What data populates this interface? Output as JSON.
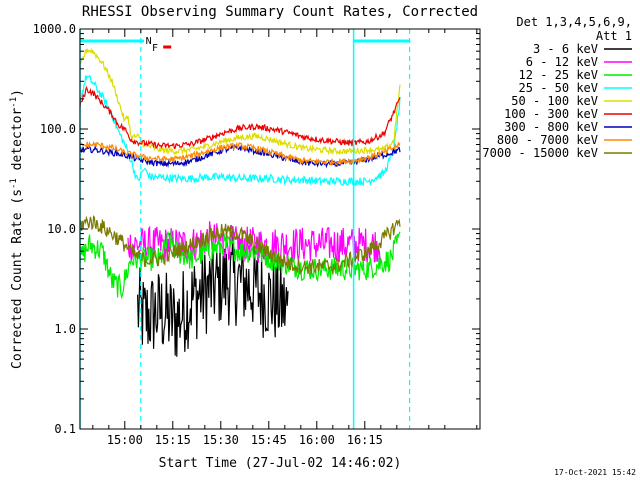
{
  "chart_data": {
    "type": "line",
    "title": "RHESSI Observing Summary Count Rates, Corrected",
    "xlabel": "Start Time (27-Jul-02 14:46:02)",
    "ylabel_main": "Corrected Count Rate (s",
    "ylabel_sup1": "-1",
    "ylabel_mid": " detector",
    "ylabel_sup2": "-1",
    "ylabel_end": ")",
    "yscale": "log",
    "ylim": [
      0.1,
      1000
    ],
    "xlim_minutes": [
      0,
      125
    ],
    "x_ticks": [
      {
        "m": 14,
        "label": "15:00"
      },
      {
        "m": 29,
        "label": "15:15"
      },
      {
        "m": 44,
        "label": "15:30"
      },
      {
        "m": 59,
        "label": "15:45"
      },
      {
        "m": 74,
        "label": "16:00"
      },
      {
        "m": 89,
        "label": "16:15"
      }
    ],
    "y_ticks": [
      {
        "v": 1000,
        "label": "1000.0"
      },
      {
        "v": 100,
        "label": "100.0"
      },
      {
        "v": 10,
        "label": "10.0"
      },
      {
        "v": 1,
        "label": "1.0"
      },
      {
        "v": 0.1,
        "label": "0.1"
      }
    ],
    "legend_header_1": "Det 1,3,4,5,6,9,",
    "legend_header_2": "Att 1",
    "footer_date": "17-Oct-2021 15:42",
    "flags": {
      "N": "N",
      "F": "F"
    },
    "series": [
      {
        "name": "3 - 6 keV",
        "color": "#000000",
        "points": [
          [
            18,
            1.6
          ],
          [
            20,
            1.3
          ],
          [
            25,
            1.5
          ],
          [
            30,
            1.2
          ],
          [
            35,
            2.0
          ],
          [
            40,
            2.5
          ],
          [
            45,
            3.0
          ],
          [
            50,
            3.0
          ],
          [
            55,
            2.5
          ],
          [
            60,
            2.0
          ],
          [
            65,
            1.6
          ]
        ]
      },
      {
        "name": "6 - 12 keV",
        "color": "#ff00ff",
        "points": [
          [
            15,
            7
          ],
          [
            20,
            7
          ],
          [
            27,
            7
          ],
          [
            30,
            7
          ],
          [
            35,
            7
          ],
          [
            40,
            8
          ],
          [
            45,
            7.5
          ],
          [
            50,
            7
          ],
          [
            55,
            7
          ],
          [
            60,
            7
          ],
          [
            70,
            7
          ],
          [
            80,
            7
          ],
          [
            94,
            7
          ]
        ]
      },
      {
        "name": "12 - 25 keV",
        "color": "#00ee00",
        "points": [
          [
            0,
            5
          ],
          [
            3,
            7
          ],
          [
            7,
            6
          ],
          [
            10,
            3
          ],
          [
            13,
            2.5
          ],
          [
            16,
            5
          ],
          [
            20,
            5
          ],
          [
            25,
            5
          ],
          [
            28,
            8
          ],
          [
            30,
            6
          ],
          [
            35,
            5
          ],
          [
            40,
            6
          ],
          [
            45,
            7
          ],
          [
            50,
            6
          ],
          [
            55,
            6
          ],
          [
            60,
            5
          ],
          [
            70,
            4
          ],
          [
            80,
            4
          ],
          [
            90,
            4
          ],
          [
            97,
            5
          ],
          [
            100,
            8
          ]
        ]
      },
      {
        "name": "25 - 50 keV",
        "color": "#00ffff",
        "points": [
          [
            0,
            190
          ],
          [
            2,
            340
          ],
          [
            4,
            290
          ],
          [
            7,
            210
          ],
          [
            10,
            140
          ],
          [
            12,
            95
          ],
          [
            14,
            70
          ],
          [
            16,
            48
          ],
          [
            18,
            30
          ],
          [
            20,
            40
          ],
          [
            22,
            33
          ],
          [
            25,
            33
          ],
          [
            30,
            32
          ],
          [
            35,
            32
          ],
          [
            40,
            33
          ],
          [
            45,
            33
          ],
          [
            50,
            32
          ],
          [
            55,
            32
          ],
          [
            60,
            32
          ],
          [
            65,
            31
          ],
          [
            70,
            31
          ],
          [
            75,
            30
          ],
          [
            80,
            30
          ],
          [
            85,
            30
          ],
          [
            90,
            30
          ],
          [
            95,
            36
          ],
          [
            98,
            60
          ],
          [
            100,
            190
          ]
        ]
      },
      {
        "name": "50 - 100 keV",
        "color": "#dddd00",
        "points": [
          [
            0,
            420
          ],
          [
            2,
            620
          ],
          [
            4,
            600
          ],
          [
            7,
            460
          ],
          [
            10,
            300
          ],
          [
            12,
            190
          ],
          [
            14,
            120
          ],
          [
            15,
            135
          ],
          [
            16,
            82
          ],
          [
            18,
            85
          ],
          [
            20,
            70
          ],
          [
            25,
            62
          ],
          [
            30,
            60
          ],
          [
            35,
            62
          ],
          [
            40,
            68
          ],
          [
            45,
            76
          ],
          [
            50,
            82
          ],
          [
            55,
            85
          ],
          [
            60,
            78
          ],
          [
            65,
            70
          ],
          [
            70,
            64
          ],
          [
            75,
            62
          ],
          [
            80,
            60
          ],
          [
            85,
            60
          ],
          [
            90,
            62
          ],
          [
            95,
            62
          ],
          [
            98,
            75
          ],
          [
            100,
            270
          ]
        ]
      },
      {
        "name": "100 - 300 keV",
        "color": "#ee0000",
        "points": [
          [
            0,
            170
          ],
          [
            2,
            250
          ],
          [
            4,
            230
          ],
          [
            7,
            180
          ],
          [
            10,
            140
          ],
          [
            12,
            110
          ],
          [
            14,
            100
          ],
          [
            16,
            78
          ],
          [
            18,
            74
          ],
          [
            20,
            72
          ],
          [
            25,
            68
          ],
          [
            30,
            68
          ],
          [
            35,
            71
          ],
          [
            40,
            80
          ],
          [
            45,
            92
          ],
          [
            50,
            102
          ],
          [
            55,
            106
          ],
          [
            60,
            100
          ],
          [
            65,
            92
          ],
          [
            70,
            83
          ],
          [
            75,
            78
          ],
          [
            80,
            75
          ],
          [
            85,
            72
          ],
          [
            90,
            75
          ],
          [
            95,
            90
          ],
          [
            100,
            200
          ]
        ]
      },
      {
        "name": "300 - 800 keV",
        "color": "#0000bb",
        "points": [
          [
            0,
            62
          ],
          [
            5,
            62
          ],
          [
            10,
            58
          ],
          [
            14,
            55
          ],
          [
            17,
            51
          ],
          [
            20,
            48
          ],
          [
            25,
            45
          ],
          [
            30,
            45
          ],
          [
            35,
            48
          ],
          [
            40,
            55
          ],
          [
            45,
            62
          ],
          [
            50,
            65
          ],
          [
            55,
            60
          ],
          [
            60,
            55
          ],
          [
            65,
            50
          ],
          [
            70,
            46
          ],
          [
            75,
            45
          ],
          [
            80,
            45
          ],
          [
            85,
            46
          ],
          [
            90,
            50
          ],
          [
            95,
            55
          ],
          [
            100,
            62
          ]
        ]
      },
      {
        "name": "800 - 7000 keV",
        "color": "#ff8800",
        "points": [
          [
            0,
            68
          ],
          [
            5,
            70
          ],
          [
            10,
            65
          ],
          [
            14,
            58
          ],
          [
            17,
            55
          ],
          [
            20,
            52
          ],
          [
            25,
            50
          ],
          [
            30,
            50
          ],
          [
            35,
            54
          ],
          [
            40,
            60
          ],
          [
            45,
            66
          ],
          [
            50,
            68
          ],
          [
            55,
            64
          ],
          [
            60,
            58
          ],
          [
            65,
            52
          ],
          [
            70,
            48
          ],
          [
            75,
            47
          ],
          [
            80,
            47
          ],
          [
            85,
            48
          ],
          [
            90,
            52
          ],
          [
            95,
            58
          ],
          [
            100,
            70
          ]
        ]
      },
      {
        "name": "7000 - 15000 keV",
        "color": "#7a7a00",
        "points": [
          [
            0,
            11
          ],
          [
            3,
            12
          ],
          [
            6,
            11
          ],
          [
            10,
            9
          ],
          [
            14,
            7
          ],
          [
            17,
            5.5
          ],
          [
            20,
            5
          ],
          [
            25,
            5
          ],
          [
            30,
            6
          ],
          [
            35,
            7
          ],
          [
            40,
            8.5
          ],
          [
            45,
            9.5
          ],
          [
            50,
            9
          ],
          [
            55,
            7
          ],
          [
            60,
            5.5
          ],
          [
            65,
            4.5
          ],
          [
            70,
            4.2
          ],
          [
            75,
            4.2
          ],
          [
            80,
            4.3
          ],
          [
            85,
            5
          ],
          [
            90,
            6
          ],
          [
            95,
            8
          ],
          [
            100,
            12
          ]
        ]
      }
    ]
  }
}
